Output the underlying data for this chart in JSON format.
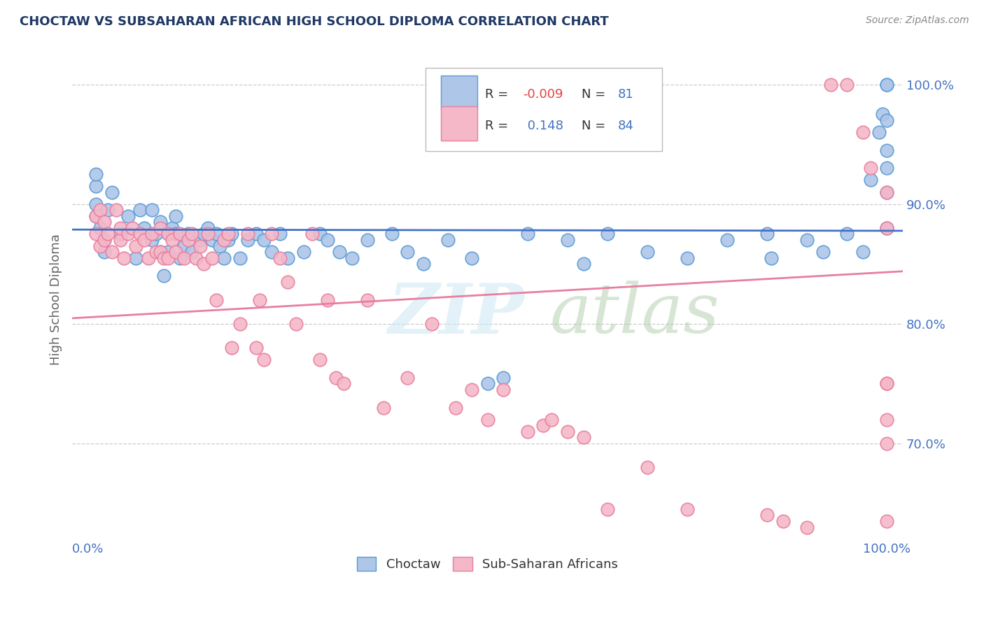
{
  "title": "CHOCTAW VS SUBSAHARAN AFRICAN HIGH SCHOOL DIPLOMA CORRELATION CHART",
  "source": "Source: ZipAtlas.com",
  "ylabel": "High School Diploma",
  "watermark_zip": "ZIP",
  "watermark_atlas": "atlas",
  "choctaw_line_color": "#4472c4",
  "subafr_line_color": "#e87fa0",
  "choctaw_dot_facecolor": "#aec6e8",
  "subafr_dot_facecolor": "#f4b8c8",
  "choctaw_dot_edge": "#5b9bd5",
  "subafr_dot_edge": "#e87fa0",
  "title_color": "#1f3864",
  "axis_label_color": "#4472c4",
  "legend_R_color": "#e84040",
  "legend_N_color": "#4472c4",
  "background_color": "#ffffff",
  "grid_color": "#cccccc",
  "legend_choctaw_color": "#aec6e8",
  "legend_subafr_color": "#f4b8c8",
  "ymin": 0.62,
  "ymax": 1.02,
  "xmin": -0.02,
  "xmax": 1.02,
  "choctaw_dots_x": [
    0.01,
    0.01,
    0.01,
    0.01,
    0.015,
    0.02,
    0.02,
    0.025,
    0.03,
    0.04,
    0.05,
    0.06,
    0.065,
    0.07,
    0.08,
    0.08,
    0.085,
    0.09,
    0.09,
    0.095,
    0.1,
    0.1,
    0.105,
    0.11,
    0.11,
    0.115,
    0.12,
    0.125,
    0.13,
    0.14,
    0.145,
    0.15,
    0.155,
    0.16,
    0.165,
    0.17,
    0.175,
    0.18,
    0.19,
    0.2,
    0.21,
    0.22,
    0.23,
    0.24,
    0.25,
    0.27,
    0.29,
    0.3,
    0.315,
    0.33,
    0.35,
    0.38,
    0.4,
    0.42,
    0.45,
    0.48,
    0.5,
    0.52,
    0.55,
    0.6,
    0.62,
    0.65,
    0.7,
    0.75,
    0.8,
    0.85,
    0.855,
    0.9,
    0.92,
    0.95,
    0.97,
    0.98,
    0.99,
    0.995,
    1.0,
    1.0,
    1.0,
    1.0,
    1.0,
    1.0,
    1.0
  ],
  "choctaw_dots_y": [
    0.89,
    0.9,
    0.915,
    0.925,
    0.88,
    0.87,
    0.86,
    0.895,
    0.91,
    0.875,
    0.89,
    0.855,
    0.895,
    0.88,
    0.87,
    0.895,
    0.875,
    0.86,
    0.885,
    0.84,
    0.875,
    0.86,
    0.88,
    0.89,
    0.875,
    0.855,
    0.865,
    0.875,
    0.86,
    0.87,
    0.875,
    0.88,
    0.87,
    0.875,
    0.865,
    0.855,
    0.87,
    0.875,
    0.855,
    0.87,
    0.875,
    0.87,
    0.86,
    0.875,
    0.855,
    0.86,
    0.875,
    0.87,
    0.86,
    0.855,
    0.87,
    0.875,
    0.86,
    0.85,
    0.87,
    0.855,
    0.75,
    0.755,
    0.875,
    0.87,
    0.85,
    0.875,
    0.86,
    0.855,
    0.87,
    0.875,
    0.855,
    0.87,
    0.86,
    0.875,
    0.86,
    0.92,
    0.96,
    0.975,
    0.91,
    0.945,
    1.0,
    1.0,
    0.97,
    0.93,
    0.88
  ],
  "subafr_dots_x": [
    0.01,
    0.01,
    0.015,
    0.015,
    0.02,
    0.02,
    0.025,
    0.03,
    0.035,
    0.04,
    0.04,
    0.045,
    0.05,
    0.055,
    0.06,
    0.065,
    0.07,
    0.075,
    0.08,
    0.085,
    0.09,
    0.09,
    0.095,
    0.1,
    0.1,
    0.105,
    0.11,
    0.115,
    0.12,
    0.125,
    0.13,
    0.135,
    0.14,
    0.145,
    0.15,
    0.155,
    0.16,
    0.17,
    0.175,
    0.18,
    0.19,
    0.2,
    0.21,
    0.215,
    0.22,
    0.23,
    0.24,
    0.25,
    0.26,
    0.28,
    0.29,
    0.3,
    0.31,
    0.32,
    0.35,
    0.37,
    0.4,
    0.43,
    0.46,
    0.48,
    0.5,
    0.52,
    0.55,
    0.57,
    0.58,
    0.6,
    0.62,
    0.65,
    0.7,
    0.75,
    0.85,
    0.87,
    0.9,
    0.93,
    0.95,
    0.97,
    0.98,
    1.0,
    1.0,
    1.0,
    1.0,
    1.0,
    1.0,
    1.0
  ],
  "subafr_dots_y": [
    0.875,
    0.89,
    0.865,
    0.895,
    0.87,
    0.885,
    0.875,
    0.86,
    0.895,
    0.87,
    0.88,
    0.855,
    0.875,
    0.88,
    0.865,
    0.875,
    0.87,
    0.855,
    0.875,
    0.86,
    0.88,
    0.86,
    0.855,
    0.875,
    0.855,
    0.87,
    0.86,
    0.875,
    0.855,
    0.87,
    0.875,
    0.855,
    0.865,
    0.85,
    0.875,
    0.855,
    0.82,
    0.87,
    0.875,
    0.78,
    0.8,
    0.875,
    0.78,
    0.82,
    0.77,
    0.875,
    0.855,
    0.835,
    0.8,
    0.875,
    0.77,
    0.82,
    0.755,
    0.75,
    0.82,
    0.73,
    0.755,
    0.8,
    0.73,
    0.745,
    0.72,
    0.745,
    0.71,
    0.715,
    0.72,
    0.71,
    0.705,
    0.645,
    0.68,
    0.645,
    0.64,
    0.635,
    0.63,
    1.0,
    1.0,
    0.96,
    0.93,
    0.91,
    0.88,
    0.75,
    0.72,
    0.7,
    0.75,
    0.635
  ]
}
